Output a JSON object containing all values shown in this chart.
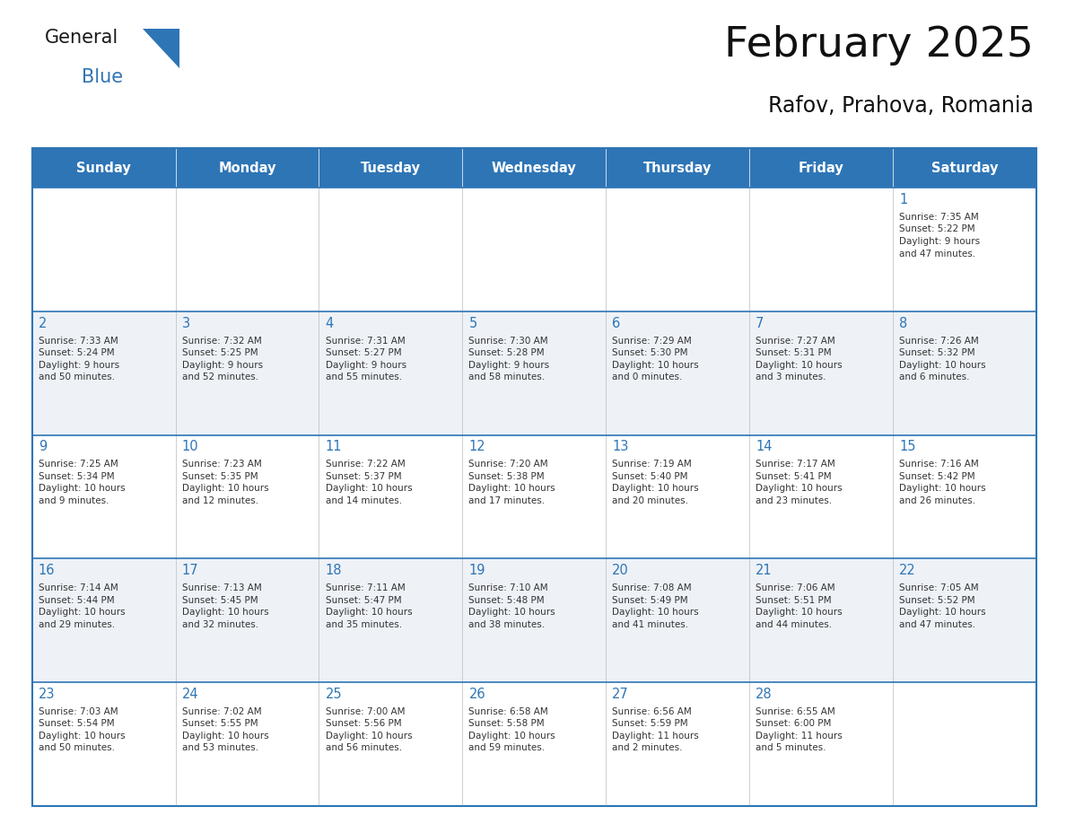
{
  "title": "February 2025",
  "subtitle": "Rafov, Prahova, Romania",
  "header_bg": "#2E75B6",
  "header_text_color": "#FFFFFF",
  "row_bg_even": "#FFFFFF",
  "row_bg_odd": "#EEF2F7",
  "border_color_dark": "#2E75B6",
  "border_color_light": "#AAAAAA",
  "day_number_color": "#2E75B6",
  "cell_text_color": "#333333",
  "logo_black": "#1a1a1a",
  "logo_blue": "#2E75B6",
  "days_of_week": [
    "Sunday",
    "Monday",
    "Tuesday",
    "Wednesday",
    "Thursday",
    "Friday",
    "Saturday"
  ],
  "calendar_data": [
    [
      {
        "day": "",
        "info": ""
      },
      {
        "day": "",
        "info": ""
      },
      {
        "day": "",
        "info": ""
      },
      {
        "day": "",
        "info": ""
      },
      {
        "day": "",
        "info": ""
      },
      {
        "day": "",
        "info": ""
      },
      {
        "day": "1",
        "info": "Sunrise: 7:35 AM\nSunset: 5:22 PM\nDaylight: 9 hours\nand 47 minutes."
      }
    ],
    [
      {
        "day": "2",
        "info": "Sunrise: 7:33 AM\nSunset: 5:24 PM\nDaylight: 9 hours\nand 50 minutes."
      },
      {
        "day": "3",
        "info": "Sunrise: 7:32 AM\nSunset: 5:25 PM\nDaylight: 9 hours\nand 52 minutes."
      },
      {
        "day": "4",
        "info": "Sunrise: 7:31 AM\nSunset: 5:27 PM\nDaylight: 9 hours\nand 55 minutes."
      },
      {
        "day": "5",
        "info": "Sunrise: 7:30 AM\nSunset: 5:28 PM\nDaylight: 9 hours\nand 58 minutes."
      },
      {
        "day": "6",
        "info": "Sunrise: 7:29 AM\nSunset: 5:30 PM\nDaylight: 10 hours\nand 0 minutes."
      },
      {
        "day": "7",
        "info": "Sunrise: 7:27 AM\nSunset: 5:31 PM\nDaylight: 10 hours\nand 3 minutes."
      },
      {
        "day": "8",
        "info": "Sunrise: 7:26 AM\nSunset: 5:32 PM\nDaylight: 10 hours\nand 6 minutes."
      }
    ],
    [
      {
        "day": "9",
        "info": "Sunrise: 7:25 AM\nSunset: 5:34 PM\nDaylight: 10 hours\nand 9 minutes."
      },
      {
        "day": "10",
        "info": "Sunrise: 7:23 AM\nSunset: 5:35 PM\nDaylight: 10 hours\nand 12 minutes."
      },
      {
        "day": "11",
        "info": "Sunrise: 7:22 AM\nSunset: 5:37 PM\nDaylight: 10 hours\nand 14 minutes."
      },
      {
        "day": "12",
        "info": "Sunrise: 7:20 AM\nSunset: 5:38 PM\nDaylight: 10 hours\nand 17 minutes."
      },
      {
        "day": "13",
        "info": "Sunrise: 7:19 AM\nSunset: 5:40 PM\nDaylight: 10 hours\nand 20 minutes."
      },
      {
        "day": "14",
        "info": "Sunrise: 7:17 AM\nSunset: 5:41 PM\nDaylight: 10 hours\nand 23 minutes."
      },
      {
        "day": "15",
        "info": "Sunrise: 7:16 AM\nSunset: 5:42 PM\nDaylight: 10 hours\nand 26 minutes."
      }
    ],
    [
      {
        "day": "16",
        "info": "Sunrise: 7:14 AM\nSunset: 5:44 PM\nDaylight: 10 hours\nand 29 minutes."
      },
      {
        "day": "17",
        "info": "Sunrise: 7:13 AM\nSunset: 5:45 PM\nDaylight: 10 hours\nand 32 minutes."
      },
      {
        "day": "18",
        "info": "Sunrise: 7:11 AM\nSunset: 5:47 PM\nDaylight: 10 hours\nand 35 minutes."
      },
      {
        "day": "19",
        "info": "Sunrise: 7:10 AM\nSunset: 5:48 PM\nDaylight: 10 hours\nand 38 minutes."
      },
      {
        "day": "20",
        "info": "Sunrise: 7:08 AM\nSunset: 5:49 PM\nDaylight: 10 hours\nand 41 minutes."
      },
      {
        "day": "21",
        "info": "Sunrise: 7:06 AM\nSunset: 5:51 PM\nDaylight: 10 hours\nand 44 minutes."
      },
      {
        "day": "22",
        "info": "Sunrise: 7:05 AM\nSunset: 5:52 PM\nDaylight: 10 hours\nand 47 minutes."
      }
    ],
    [
      {
        "day": "23",
        "info": "Sunrise: 7:03 AM\nSunset: 5:54 PM\nDaylight: 10 hours\nand 50 minutes."
      },
      {
        "day": "24",
        "info": "Sunrise: 7:02 AM\nSunset: 5:55 PM\nDaylight: 10 hours\nand 53 minutes."
      },
      {
        "day": "25",
        "info": "Sunrise: 7:00 AM\nSunset: 5:56 PM\nDaylight: 10 hours\nand 56 minutes."
      },
      {
        "day": "26",
        "info": "Sunrise: 6:58 AM\nSunset: 5:58 PM\nDaylight: 10 hours\nand 59 minutes."
      },
      {
        "day": "27",
        "info": "Sunrise: 6:56 AM\nSunset: 5:59 PM\nDaylight: 11 hours\nand 2 minutes."
      },
      {
        "day": "28",
        "info": "Sunrise: 6:55 AM\nSunset: 6:00 PM\nDaylight: 11 hours\nand 5 minutes."
      },
      {
        "day": "",
        "info": ""
      }
    ]
  ]
}
